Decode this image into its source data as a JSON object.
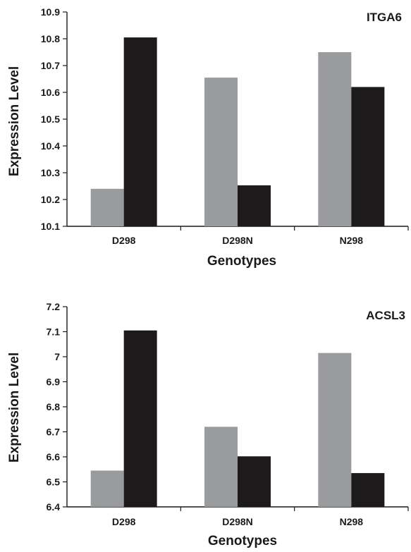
{
  "colors": {
    "series_a": "#9a9b9d",
    "series_b": "#1c1a1b",
    "axis": "#1a1a1a"
  },
  "chart_data": [
    {
      "type": "bar",
      "title": "ITGA6",
      "xlabel": "Genotypes",
      "ylabel": "Expression Level",
      "categories": [
        "D298",
        "D298N",
        "N298"
      ],
      "series": [
        {
          "values": [
            10.24,
            10.655,
            10.75
          ]
        },
        {
          "values": [
            10.805,
            10.253,
            10.62
          ]
        }
      ],
      "ylim": [
        10.1,
        10.9
      ],
      "yticks": [
        "10.1",
        "10.2",
        "10.3",
        "10.4",
        "10.5",
        "10.6",
        "10.7",
        "10.8",
        "10.9"
      ],
      "grid": false
    },
    {
      "type": "bar",
      "title": "ACSL3",
      "xlabel": "Genotypes",
      "ylabel": "Expression Level",
      "categories": [
        "D298",
        "D298N",
        "N298"
      ],
      "series": [
        {
          "values": [
            6.545,
            6.72,
            7.015
          ]
        },
        {
          "values": [
            7.105,
            6.602,
            6.535
          ]
        }
      ],
      "ylim": [
        6.4,
        7.2
      ],
      "yticks": [
        "6.4",
        "6.5",
        "6.6",
        "6.7",
        "6.8",
        "6.9",
        "7",
        "7.1",
        "7.2"
      ],
      "grid": false
    }
  ]
}
